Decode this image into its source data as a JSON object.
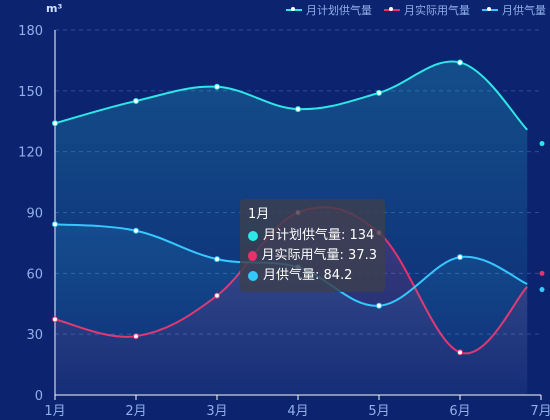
{
  "chart_data": {
    "type": "area",
    "unit": "m³",
    "categories": [
      "1月",
      "2月",
      "3月",
      "4月",
      "5月",
      "6月",
      "7月"
    ],
    "ylim": [
      0,
      180
    ],
    "yticks": [
      0,
      30,
      60,
      90,
      120,
      150,
      180
    ],
    "grid": true,
    "legend_position": "top-right",
    "series": [
      {
        "name": "月计划供气量",
        "color": "#2ee6e6",
        "values": [
          134,
          145,
          152,
          141,
          149,
          164,
          124
        ]
      },
      {
        "name": "月实际用气量",
        "color": "#e8306a",
        "values": [
          37.3,
          29,
          49,
          90,
          80,
          21,
          60
        ]
      },
      {
        "name": "月供气量",
        "color": "#35c8ff",
        "values": [
          84.2,
          81,
          67,
          63,
          44,
          68,
          52
        ]
      }
    ],
    "tooltip": {
      "title": "1月",
      "rows": [
        {
          "label": "月计划供气量: 134",
          "color": "#2ee6e6"
        },
        {
          "label": "月实际用气量: 37.3",
          "color": "#e8306a"
        },
        {
          "label": "月供气量: 84.2",
          "color": "#35c8ff"
        }
      ]
    }
  }
}
